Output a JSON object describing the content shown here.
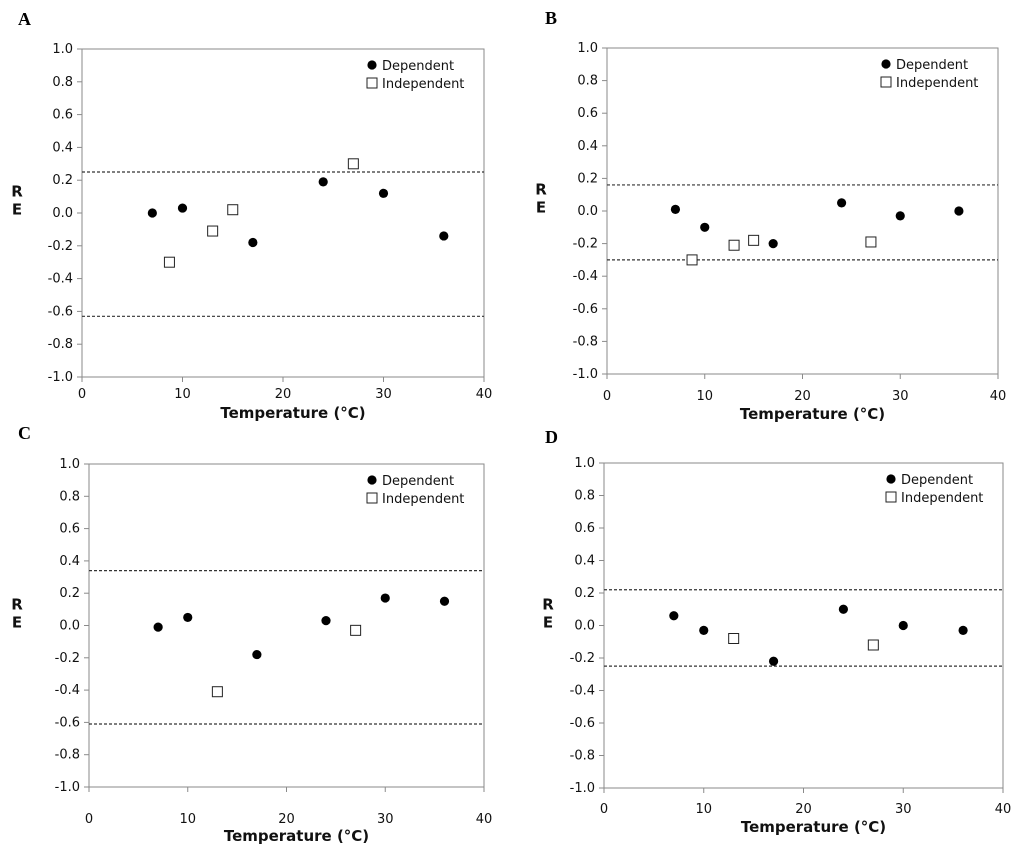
{
  "figure": {
    "background": "#ffffff"
  },
  "chart_data": [
    {
      "type": "scatter",
      "panel_label": "A",
      "xlabel": "Temperature (°C)",
      "ylabel": "R\nE",
      "xlim": [
        0,
        40
      ],
      "ylim": [
        -1.0,
        1.0
      ],
      "xticks": [
        "0",
        "10",
        "20",
        "30",
        "40"
      ],
      "yticks": [
        "1.0",
        "0.8",
        "0.6",
        "0.4",
        "0.2",
        "0.0",
        "-0.2",
        "-0.4",
        "-0.6",
        "-0.8",
        "-1.0"
      ],
      "legend_position": "top-right",
      "reference_lines": [
        0.25,
        -0.63
      ],
      "series": [
        {
          "name": "Dependent",
          "marker": "filled-circle",
          "x": [
            7,
            10,
            17,
            24,
            30,
            36
          ],
          "y": [
            0.0,
            0.03,
            -0.18,
            0.19,
            0.12,
            -0.14
          ]
        },
        {
          "name": "Independent",
          "marker": "open-square",
          "x": [
            8.7,
            13,
            15,
            27
          ],
          "y": [
            -0.3,
            -0.11,
            0.02,
            0.3
          ]
        }
      ]
    },
    {
      "type": "scatter",
      "panel_label": "B",
      "xlabel": "Temperature (°C)",
      "ylabel": "R\nE",
      "xlim": [
        0,
        40
      ],
      "ylim": [
        -1.0,
        1.0
      ],
      "xticks": [
        "0",
        "10",
        "20",
        "30",
        "40"
      ],
      "yticks": [
        "1.0",
        "0.8",
        "0.6",
        "0.4",
        "0.2",
        "0.0",
        "-0.2",
        "-0.4",
        "-0.6",
        "-0.8",
        "-1.0"
      ],
      "legend_position": "top-right",
      "reference_lines": [
        0.16,
        -0.3
      ],
      "series": [
        {
          "name": "Dependent",
          "marker": "filled-circle",
          "x": [
            7,
            10,
            17,
            24,
            30,
            36
          ],
          "y": [
            0.01,
            -0.1,
            -0.2,
            0.05,
            -0.03,
            0.0
          ]
        },
        {
          "name": "Independent",
          "marker": "open-square",
          "x": [
            8.7,
            13,
            15,
            27
          ],
          "y": [
            -0.3,
            -0.21,
            -0.18,
            -0.19
          ]
        }
      ]
    },
    {
      "type": "scatter",
      "panel_label": "C",
      "xlabel": "Temperature (°C)",
      "ylabel": "R\nE",
      "xlim": [
        0,
        40
      ],
      "ylim": [
        -1.0,
        1.0
      ],
      "xticks": [
        "0",
        "10",
        "20",
        "30",
        "40"
      ],
      "yticks": [
        "1.0",
        "0.8",
        "0.6",
        "0.4",
        "0.2",
        "0.0",
        "-0.2",
        "-0.4",
        "-0.6",
        "-0.8",
        "-1.0"
      ],
      "legend_position": "top-right",
      "reference_lines": [
        0.34,
        -0.61
      ],
      "series": [
        {
          "name": "Dependent",
          "marker": "filled-circle",
          "x": [
            7,
            10,
            17,
            24,
            30,
            36
          ],
          "y": [
            -0.01,
            0.05,
            -0.18,
            0.03,
            0.17,
            0.15
          ]
        },
        {
          "name": "Independent",
          "marker": "open-square",
          "x": [
            13,
            27
          ],
          "y": [
            -0.41,
            -0.03
          ]
        }
      ]
    },
    {
      "type": "scatter",
      "panel_label": "D",
      "xlabel": "Temperature (°C)",
      "ylabel": "R\nE",
      "xlim": [
        0,
        40
      ],
      "ylim": [
        -1.0,
        1.0
      ],
      "xticks": [
        "0",
        "10",
        "20",
        "30",
        "40"
      ],
      "yticks": [
        "1.0",
        "0.8",
        "0.6",
        "0.4",
        "0.2",
        "0.0",
        "-0.2",
        "-0.4",
        "-0.6",
        "-0.8",
        "-1.0"
      ],
      "legend_position": "top-right",
      "reference_lines": [
        0.22,
        -0.25
      ],
      "series": [
        {
          "name": "Dependent",
          "marker": "filled-circle",
          "x": [
            7,
            10,
            17,
            24,
            30,
            36
          ],
          "y": [
            0.06,
            -0.03,
            -0.22,
            0.1,
            0.0,
            -0.03
          ]
        },
        {
          "name": "Independent",
          "marker": "open-square",
          "x": [
            13,
            27
          ],
          "y": [
            -0.08,
            -0.12
          ]
        }
      ]
    }
  ]
}
